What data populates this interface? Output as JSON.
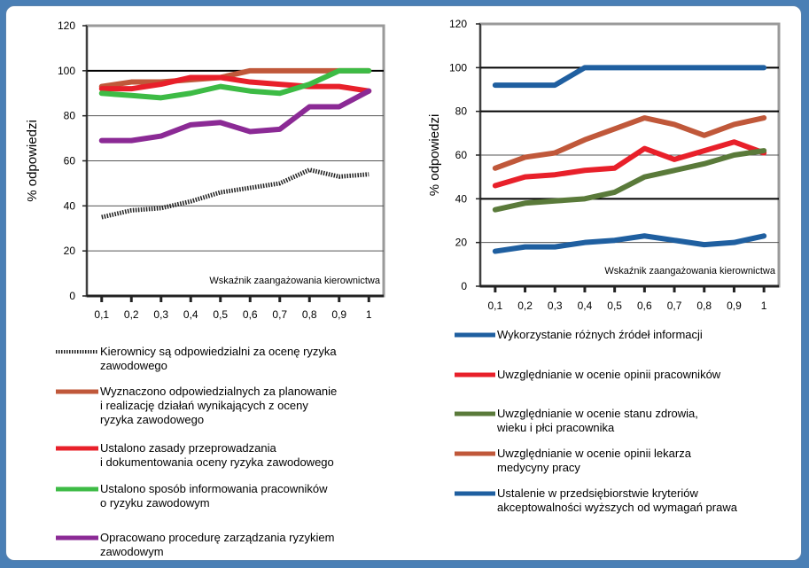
{
  "charts": [
    {
      "ylabel": "% odpowiedzi",
      "inner_label": "Wskaźnik zaangażowania kierownictwa",
      "legend": [
        {
          "text": [
            "Kierownicy  są odpowiedzialni za ocenę ryzyka",
            "zawodowego"
          ]
        },
        {
          "text": [
            "Wyznaczono  odpowiedzialnych za planowanie",
            "i realizację działań wynikających z oceny",
            "ryzyka zawodowego"
          ]
        },
        {
          "text": [
            "Ustalono zasady przeprowadzania",
            "i dokumentowania oceny ryzyka zawodowego"
          ]
        },
        {
          "text": [
            "Ustalono sposób informowania pracowników",
            "o ryzyku zawodowym"
          ]
        },
        {
          "text": [
            "Opracowano procedurę zarządzania ryzykiem",
            "zawodowym"
          ]
        }
      ]
    },
    {
      "ylabel": "% odpowiedzi",
      "inner_label": "Wskaźnik zaangażowania kierownictwa",
      "legend": [
        {
          "text": [
            "Wykorzystanie różnych źródeł informacji"
          ]
        },
        {
          "text": [
            "Uwzględnianie w ocenie opinii pracowników"
          ]
        },
        {
          "text": [
            "Uwzględnianie w ocenie stanu zdrowia,",
            "wieku i płci pracownika"
          ]
        },
        {
          "text": [
            "Uwzględnianie w ocenie opinii lekarza",
            "medycyny pracy"
          ]
        },
        {
          "text": [
            "Ustalenie w przedsiębiorstwie kryteriów",
            "akceptowalności wyższych od wymagań prawa"
          ]
        }
      ]
    }
  ],
  "chart_data": [
    {
      "type": "line",
      "ylabel": "% odpowiedzi",
      "ylim": [
        0,
        120
      ],
      "yticks": [
        "0",
        "20",
        "40",
        "60",
        "80",
        "100",
        "120"
      ],
      "categories": [
        "0,1",
        "0,2",
        "0,3",
        "0,4",
        "0,5",
        "0,6",
        "0,7",
        "0,8",
        "0,9",
        "1"
      ],
      "grid": true,
      "series": [
        {
          "name": "Kierownicy  są odpowiedzialni za ocenę ryzyka zawodowego",
          "color": "#222222",
          "style": "dotted",
          "values": [
            35,
            38,
            39,
            42,
            46,
            48,
            50,
            56,
            53,
            54
          ]
        },
        {
          "name": "Wyznaczono  odpowiedzialnych za planowanie i realizację działań wynikających z oceny ryzyka zawodowego",
          "color": "#c0583a",
          "style": "solid",
          "values": [
            93,
            95,
            95,
            96,
            97,
            100,
            100,
            100,
            100,
            100
          ]
        },
        {
          "name": "Ustalono zasady przeprowadzania i dokumentowania oceny ryzyka zawodowego",
          "color": "#e8202a",
          "style": "solid",
          "values": [
            92,
            92,
            94,
            97,
            97,
            95,
            94,
            93,
            93,
            91
          ]
        },
        {
          "name": "Ustalono sposób informowania pracowników o ryzyku zawodowym",
          "color": "#3dbb45",
          "style": "solid",
          "values": [
            90,
            89,
            88,
            90,
            93,
            91,
            90,
            94,
            100,
            100
          ]
        },
        {
          "name": "Opracowano procedurę zarządzania ryzykiem zawodowym",
          "color": "#8b2a95",
          "style": "solid",
          "values": [
            69,
            69,
            71,
            76,
            77,
            73,
            74,
            84,
            84,
            91
          ]
        }
      ]
    },
    {
      "type": "line",
      "ylabel": "% odpowiedzi",
      "ylim": [
        0,
        120
      ],
      "yticks": [
        "0",
        "20",
        "40",
        "60",
        "80",
        "100",
        "120"
      ],
      "categories": [
        "0,1",
        "0,2",
        "0,3",
        "0,4",
        "0,5",
        "0,6",
        "0,7",
        "0,8",
        "0,9",
        "1"
      ],
      "grid": true,
      "series": [
        {
          "name": "Wykorzystanie różnych źródeł informacji",
          "color": "#1f5fa0",
          "style": "solid",
          "values": [
            92,
            92,
            92,
            100,
            100,
            100,
            100,
            100,
            100,
            100
          ]
        },
        {
          "name": "Uwzględnianie w ocenie opinii pracowników",
          "color": "#e8202a",
          "style": "solid",
          "values": [
            46,
            50,
            51,
            53,
            54,
            63,
            58,
            62,
            66,
            61
          ]
        },
        {
          "name": "Uwzględnianie w ocenie stanu zdrowia, wieku i płci pracownika",
          "color": "#5a7a3a",
          "style": "solid",
          "values": [
            35,
            38,
            39,
            40,
            43,
            50,
            53,
            56,
            60,
            62
          ]
        },
        {
          "name": "Uwzględnianie w ocenie opinii lekarza medycyny pracy",
          "color": "#c0583a",
          "style": "solid",
          "values": [
            54,
            59,
            61,
            67,
            72,
            77,
            74,
            69,
            74,
            77
          ]
        },
        {
          "name": "Ustalenie w przedsiębiorstwie kryteriów akceptowalności wyższych od wymagań prawa",
          "color": "#1f5fa0",
          "style": "solid",
          "values": [
            16,
            18,
            18,
            20,
            21,
            23,
            21,
            19,
            20,
            23
          ]
        }
      ]
    }
  ]
}
